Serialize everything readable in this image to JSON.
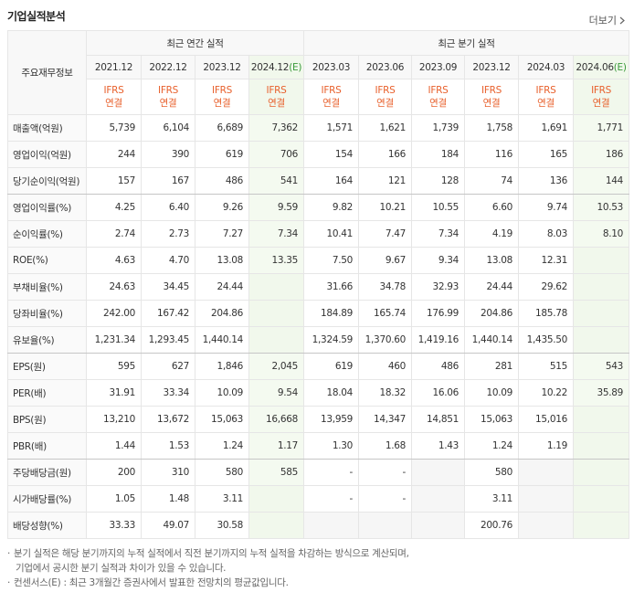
{
  "header": {
    "title": "기업실적분석",
    "more": "더보기"
  },
  "table": {
    "corner": "주요재무정보",
    "groups": [
      {
        "label": "최근 연간 실적",
        "span": 4
      },
      {
        "label": "최근 분기 실적",
        "span": 6
      }
    ],
    "columns": [
      {
        "period": "2021.12",
        "standard": "IFRS",
        "basis": "연결"
      },
      {
        "period": "2022.12",
        "standard": "IFRS",
        "basis": "연결"
      },
      {
        "period": "2023.12",
        "standard": "IFRS",
        "basis": "연결"
      },
      {
        "period": "2024.12",
        "estimate": "(E)",
        "standard": "IFRS",
        "basis": "연결"
      },
      {
        "period": "2023.03",
        "standard": "IFRS",
        "basis": "연결"
      },
      {
        "period": "2023.06",
        "standard": "IFRS",
        "basis": "연결"
      },
      {
        "period": "2023.09",
        "standard": "IFRS",
        "basis": "연결"
      },
      {
        "period": "2023.12",
        "standard": "IFRS",
        "basis": "연결"
      },
      {
        "period": "2024.03",
        "standard": "IFRS",
        "basis": "연결"
      },
      {
        "period": "2024.06",
        "estimate": "(E)",
        "standard": "IFRS",
        "basis": "연결"
      }
    ],
    "rows": [
      {
        "label": "매출액(억원)",
        "values": [
          "5,739",
          "6,104",
          "6,689",
          "7,362",
          "1,571",
          "1,621",
          "1,739",
          "1,758",
          "1,691",
          "1,771"
        ]
      },
      {
        "label": "영업이익(억원)",
        "values": [
          "244",
          "390",
          "619",
          "706",
          "154",
          "166",
          "184",
          "116",
          "165",
          "186"
        ]
      },
      {
        "label": "당기순이익(억원)",
        "values": [
          "157",
          "167",
          "486",
          "541",
          "164",
          "121",
          "128",
          "74",
          "136",
          "144"
        ]
      },
      {
        "label": "영업이익률(%)",
        "values": [
          "4.25",
          "6.40",
          "9.26",
          "9.59",
          "9.82",
          "10.21",
          "10.55",
          "6.60",
          "9.74",
          "10.53"
        ]
      },
      {
        "label": "순이익률(%)",
        "values": [
          "2.74",
          "2.73",
          "7.27",
          "7.34",
          "10.41",
          "7.47",
          "7.34",
          "4.19",
          "8.03",
          "8.10"
        ]
      },
      {
        "label": "ROE(%)",
        "values": [
          "4.63",
          "4.70",
          "13.08",
          "13.35",
          "7.50",
          "9.67",
          "9.34",
          "13.08",
          "12.31",
          null
        ]
      },
      {
        "label": "부채비율(%)",
        "values": [
          "24.63",
          "34.45",
          "24.44",
          null,
          "31.66",
          "34.78",
          "32.93",
          "24.44",
          "29.62",
          null
        ]
      },
      {
        "label": "당좌비율(%)",
        "values": [
          "242.00",
          "167.42",
          "204.86",
          null,
          "184.89",
          "165.74",
          "176.99",
          "204.86",
          "185.78",
          null
        ]
      },
      {
        "label": "유보율(%)",
        "values": [
          "1,231.34",
          "1,293.45",
          "1,440.14",
          null,
          "1,324.59",
          "1,370.60",
          "1,419.16",
          "1,440.14",
          "1,435.50",
          null
        ]
      },
      {
        "label": "EPS(원)",
        "values": [
          "595",
          "627",
          "1,846",
          "2,045",
          "619",
          "460",
          "486",
          "281",
          "515",
          "543"
        ]
      },
      {
        "label": "PER(배)",
        "values": [
          "31.91",
          "33.34",
          "10.09",
          "9.54",
          "18.04",
          "18.32",
          "16.06",
          "10.09",
          "10.22",
          "35.89"
        ]
      },
      {
        "label": "BPS(원)",
        "values": [
          "13,210",
          "13,672",
          "15,063",
          "16,668",
          "13,959",
          "14,347",
          "14,851",
          "15,063",
          "15,016",
          null
        ]
      },
      {
        "label": "PBR(배)",
        "values": [
          "1.44",
          "1.53",
          "1.24",
          "1.17",
          "1.30",
          "1.68",
          "1.43",
          "1.24",
          "1.19",
          null
        ]
      },
      {
        "label": "주당배당금(원)",
        "values": [
          "200",
          "310",
          "580",
          "585",
          "-",
          "-",
          null,
          "580",
          null,
          null
        ]
      },
      {
        "label": "시가배당률(%)",
        "values": [
          "1.05",
          "1.48",
          "3.11",
          null,
          "-",
          "-",
          null,
          "3.11",
          null,
          null
        ]
      },
      {
        "label": "배당성향(%)",
        "values": [
          "33.33",
          "49.07",
          "30.58",
          null,
          null,
          null,
          null,
          "200.76",
          null,
          null
        ]
      }
    ]
  },
  "notes": [
    "분기 실적은 해당 분기까지의 누적 실적에서 직전 분기까지의 누적 실적을 차감하는 방식으로 계산되며,",
    "기업에서 공시한 분기 실적과 차이가 있을 수 있습니다.",
    "컨센서스(E) : 최근 3개월간 증권사에서 발표한 전망치의 평균값입니다."
  ]
}
